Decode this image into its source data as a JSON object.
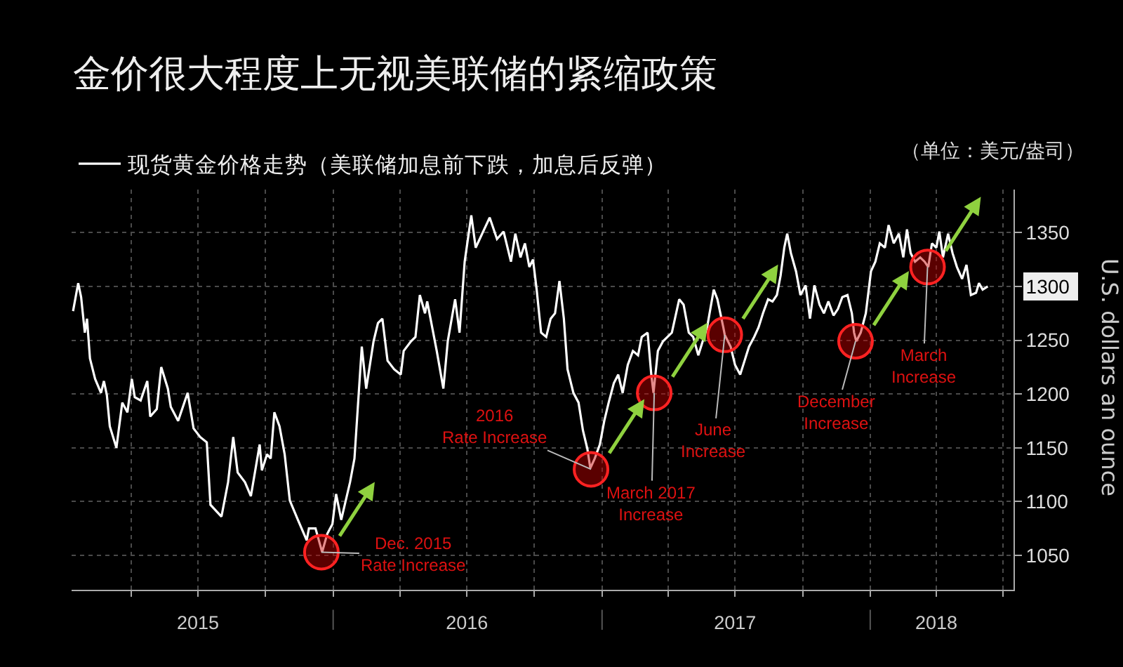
{
  "chart_data": {
    "type": "line",
    "title": "金价很大程度上无视美联储的紧缩政策",
    "ylabel": "U.S. dollars an ounce",
    "annotations": [
      "（单位：美元/盎司）",
      {
        "text": "Dec. 2015\nRate Increase",
        "x": "2015-12-16",
        "y": 1053
      },
      {
        "text": "2016\nRate Increase",
        "x": "2016-12-17",
        "y": 1130
      },
      {
        "text": "March 2017\nIncrease",
        "x": "2017-03-13",
        "y": 1201
      },
      {
        "text": "June\nIncrease",
        "x": "2017-06-17",
        "y": 1255
      },
      {
        "text": "December\nIncrease",
        "x": "2017-12-12",
        "y": 1249
      },
      {
        "text": "March\nIncrease",
        "x": "2018-03-20",
        "y": 1318
      }
    ],
    "x": [
      "2015-01-12",
      "2015-01-19",
      "2015-01-23",
      "2015-01-28",
      "2015-01-31",
      "2015-02-04",
      "2015-02-11",
      "2015-02-19",
      "2015-02-23",
      "2015-02-27",
      "2015-03-03",
      "2015-03-12",
      "2015-03-20",
      "2015-03-27",
      "2015-04-02",
      "2015-04-06",
      "2015-04-14",
      "2015-04-23",
      "2015-04-27",
      "2015-05-06",
      "2015-05-12",
      "2015-05-21",
      "2015-05-25",
      "2015-06-04",
      "2015-06-17",
      "2015-06-25",
      "2015-07-04",
      "2015-07-13",
      "2015-07-18",
      "2015-08-02",
      "2015-08-11",
      "2015-08-18",
      "2015-08-24",
      "2015-09-03",
      "2015-09-11",
      "2015-09-23",
      "2015-09-26",
      "2015-10-03",
      "2015-10-08",
      "2015-10-13",
      "2015-10-20",
      "2015-10-27",
      "2015-11-03",
      "2015-11-14",
      "2015-11-26",
      "2015-11-29",
      "2015-12-08",
      "2015-12-17",
      "2015-12-24",
      "2015-12-31",
      "2016-01-05",
      "2016-01-12",
      "2016-01-24",
      "2016-01-30",
      "2016-02-09",
      "2016-02-15",
      "2016-02-25",
      "2016-03-02",
      "2016-03-08",
      "2016-03-15",
      "2016-03-24",
      "2016-04-02",
      "2016-04-06",
      "2016-04-16",
      "2016-04-22",
      "2016-04-28",
      "2016-05-05",
      "2016-05-08",
      "2016-05-21",
      "2016-05-30",
      "2016-06-05",
      "2016-06-15",
      "2016-06-21",
      "2016-06-28",
      "2016-07-07",
      "2016-07-13",
      "2016-08-01",
      "2016-08-11",
      "2016-08-20",
      "2016-08-30",
      "2016-09-05",
      "2016-09-12",
      "2016-09-18",
      "2016-09-24",
      "2016-09-29",
      "2016-10-04",
      "2016-10-10",
      "2016-10-17",
      "2016-10-23",
      "2016-10-29",
      "2016-11-04",
      "2016-11-10",
      "2016-11-15",
      "2016-11-23",
      "2016-11-30",
      "2016-12-06",
      "2016-12-12",
      "2016-12-16",
      "2016-12-22",
      "2016-12-29",
      "2017-01-04",
      "2017-01-10",
      "2017-01-17",
      "2017-01-23",
      "2017-01-29",
      "2017-02-05",
      "2017-02-12",
      "2017-02-19",
      "2017-02-24",
      "2017-03-04",
      "2017-03-09",
      "2017-03-12",
      "2017-03-18",
      "2017-03-25",
      "2017-03-31",
      "2017-04-06",
      "2017-04-16",
      "2017-04-22",
      "2017-04-29",
      "2017-05-05",
      "2017-05-12",
      "2017-05-24",
      "2017-06-02",
      "2017-06-07",
      "2017-06-15",
      "2017-06-17",
      "2017-06-25",
      "2017-07-01",
      "2017-07-08",
      "2017-07-14",
      "2017-07-20",
      "2017-07-27",
      "2017-08-02",
      "2017-08-08",
      "2017-08-15",
      "2017-08-21",
      "2017-08-27",
      "2017-09-01",
      "2017-09-06",
      "2017-09-10",
      "2017-09-15",
      "2017-09-22",
      "2017-09-28",
      "2017-10-05",
      "2017-10-11",
      "2017-10-17",
      "2017-10-24",
      "2017-10-30",
      "2017-11-05",
      "2017-11-12",
      "2017-11-18",
      "2017-11-24",
      "2017-12-01",
      "2017-12-07",
      "2017-12-10",
      "2017-12-13",
      "2017-12-19",
      "2017-12-26",
      "2018-01-02",
      "2018-01-08",
      "2018-01-14",
      "2018-01-21",
      "2018-01-26",
      "2018-02-02",
      "2018-02-09",
      "2018-02-15",
      "2018-02-20",
      "2018-02-25",
      "2018-03-03",
      "2018-03-10",
      "2018-03-16",
      "2018-03-21",
      "2018-03-26",
      "2018-04-01",
      "2018-04-05",
      "2018-04-10",
      "2018-04-17",
      "2018-04-23",
      "2018-04-29",
      "2018-05-06",
      "2018-05-12",
      "2018-05-18",
      "2018-05-25",
      "2018-05-29",
      "2018-06-03",
      "2018-06-10"
    ],
    "series": [
      {
        "name": "现货黄金价格走势（美联储加息前下跌，加息后反弹）",
        "color": "#ffffff",
        "values": [
          1277,
          1303,
          1290,
          1257,
          1270,
          1233,
          1214,
          1201,
          1212,
          1199,
          1170,
          1150,
          1192,
          1183,
          1214,
          1197,
          1194,
          1212,
          1179,
          1186,
          1225,
          1205,
          1188,
          1175,
          1201,
          1168,
          1160,
          1155,
          1097,
          1086,
          1118,
          1160,
          1127,
          1118,
          1105,
          1153,
          1129,
          1144,
          1140,
          1183,
          1170,
          1144,
          1101,
          1083,
          1064,
          1075,
          1075,
          1053,
          1070,
          1079,
          1107,
          1083,
          1118,
          1140,
          1244,
          1205,
          1249,
          1266,
          1270,
          1231,
          1223,
          1218,
          1240,
          1249,
          1253,
          1292,
          1275,
          1286,
          1240,
          1205,
          1249,
          1288,
          1257,
          1323,
          1366,
          1336,
          1364,
          1344,
          1351,
          1323,
          1349,
          1327,
          1340,
          1318,
          1325,
          1297,
          1257,
          1253,
          1270,
          1275,
          1305,
          1270,
          1223,
          1201,
          1192,
          1166,
          1149,
          1131,
          1140,
          1153,
          1175,
          1192,
          1210,
          1218,
          1201,
          1227,
          1240,
          1236,
          1253,
          1257,
          1218,
          1201,
          1240,
          1249,
          1253,
          1257,
          1288,
          1283,
          1257,
          1253,
          1236,
          1262,
          1297,
          1288,
          1262,
          1255,
          1244,
          1227,
          1218,
          1231,
          1244,
          1253,
          1262,
          1275,
          1288,
          1286,
          1292,
          1310,
          1336,
          1349,
          1331,
          1314,
          1292,
          1301,
          1270,
          1301,
          1283,
          1275,
          1286,
          1273,
          1279,
          1290,
          1292,
          1275,
          1257,
          1249,
          1257,
          1275,
          1314,
          1323,
          1340,
          1336,
          1357,
          1340,
          1349,
          1327,
          1353,
          1331,
          1323,
          1327,
          1323,
          1318,
          1340,
          1336,
          1351,
          1327,
          1349,
          1331,
          1318,
          1307,
          1320,
          1292,
          1294,
          1303,
          1297,
          1300
        ]
      }
    ],
    "xlim": [
      "2015-01-10",
      "2018-07-15"
    ],
    "xticks": [
      {
        "value": "2015-04-01",
        "label": null
      },
      {
        "value": "2015-07-01",
        "label": "2015"
      },
      {
        "value": "2015-10-01",
        "label": null
      },
      {
        "value": "2016-01-01",
        "label": null
      },
      {
        "value": "2016-04-01",
        "label": null
      },
      {
        "value": "2016-07-01",
        "label": "2016"
      },
      {
        "value": "2016-10-01",
        "label": null
      },
      {
        "value": "2017-01-01",
        "label": null
      },
      {
        "value": "2017-04-01",
        "label": null
      },
      {
        "value": "2017-07-01",
        "label": "2017"
      },
      {
        "value": "2017-10-01",
        "label": null
      },
      {
        "value": "2018-01-01",
        "label": null
      },
      {
        "value": "2018-04-01",
        "label": "2018"
      },
      {
        "value": "2018-07-01",
        "label": null
      }
    ],
    "ylim": [
      1018,
      1390
    ],
    "yticks": [
      1050,
      1100,
      1150,
      1200,
      1250,
      1300,
      1350
    ],
    "grid": true,
    "legend": "top left"
  }
}
